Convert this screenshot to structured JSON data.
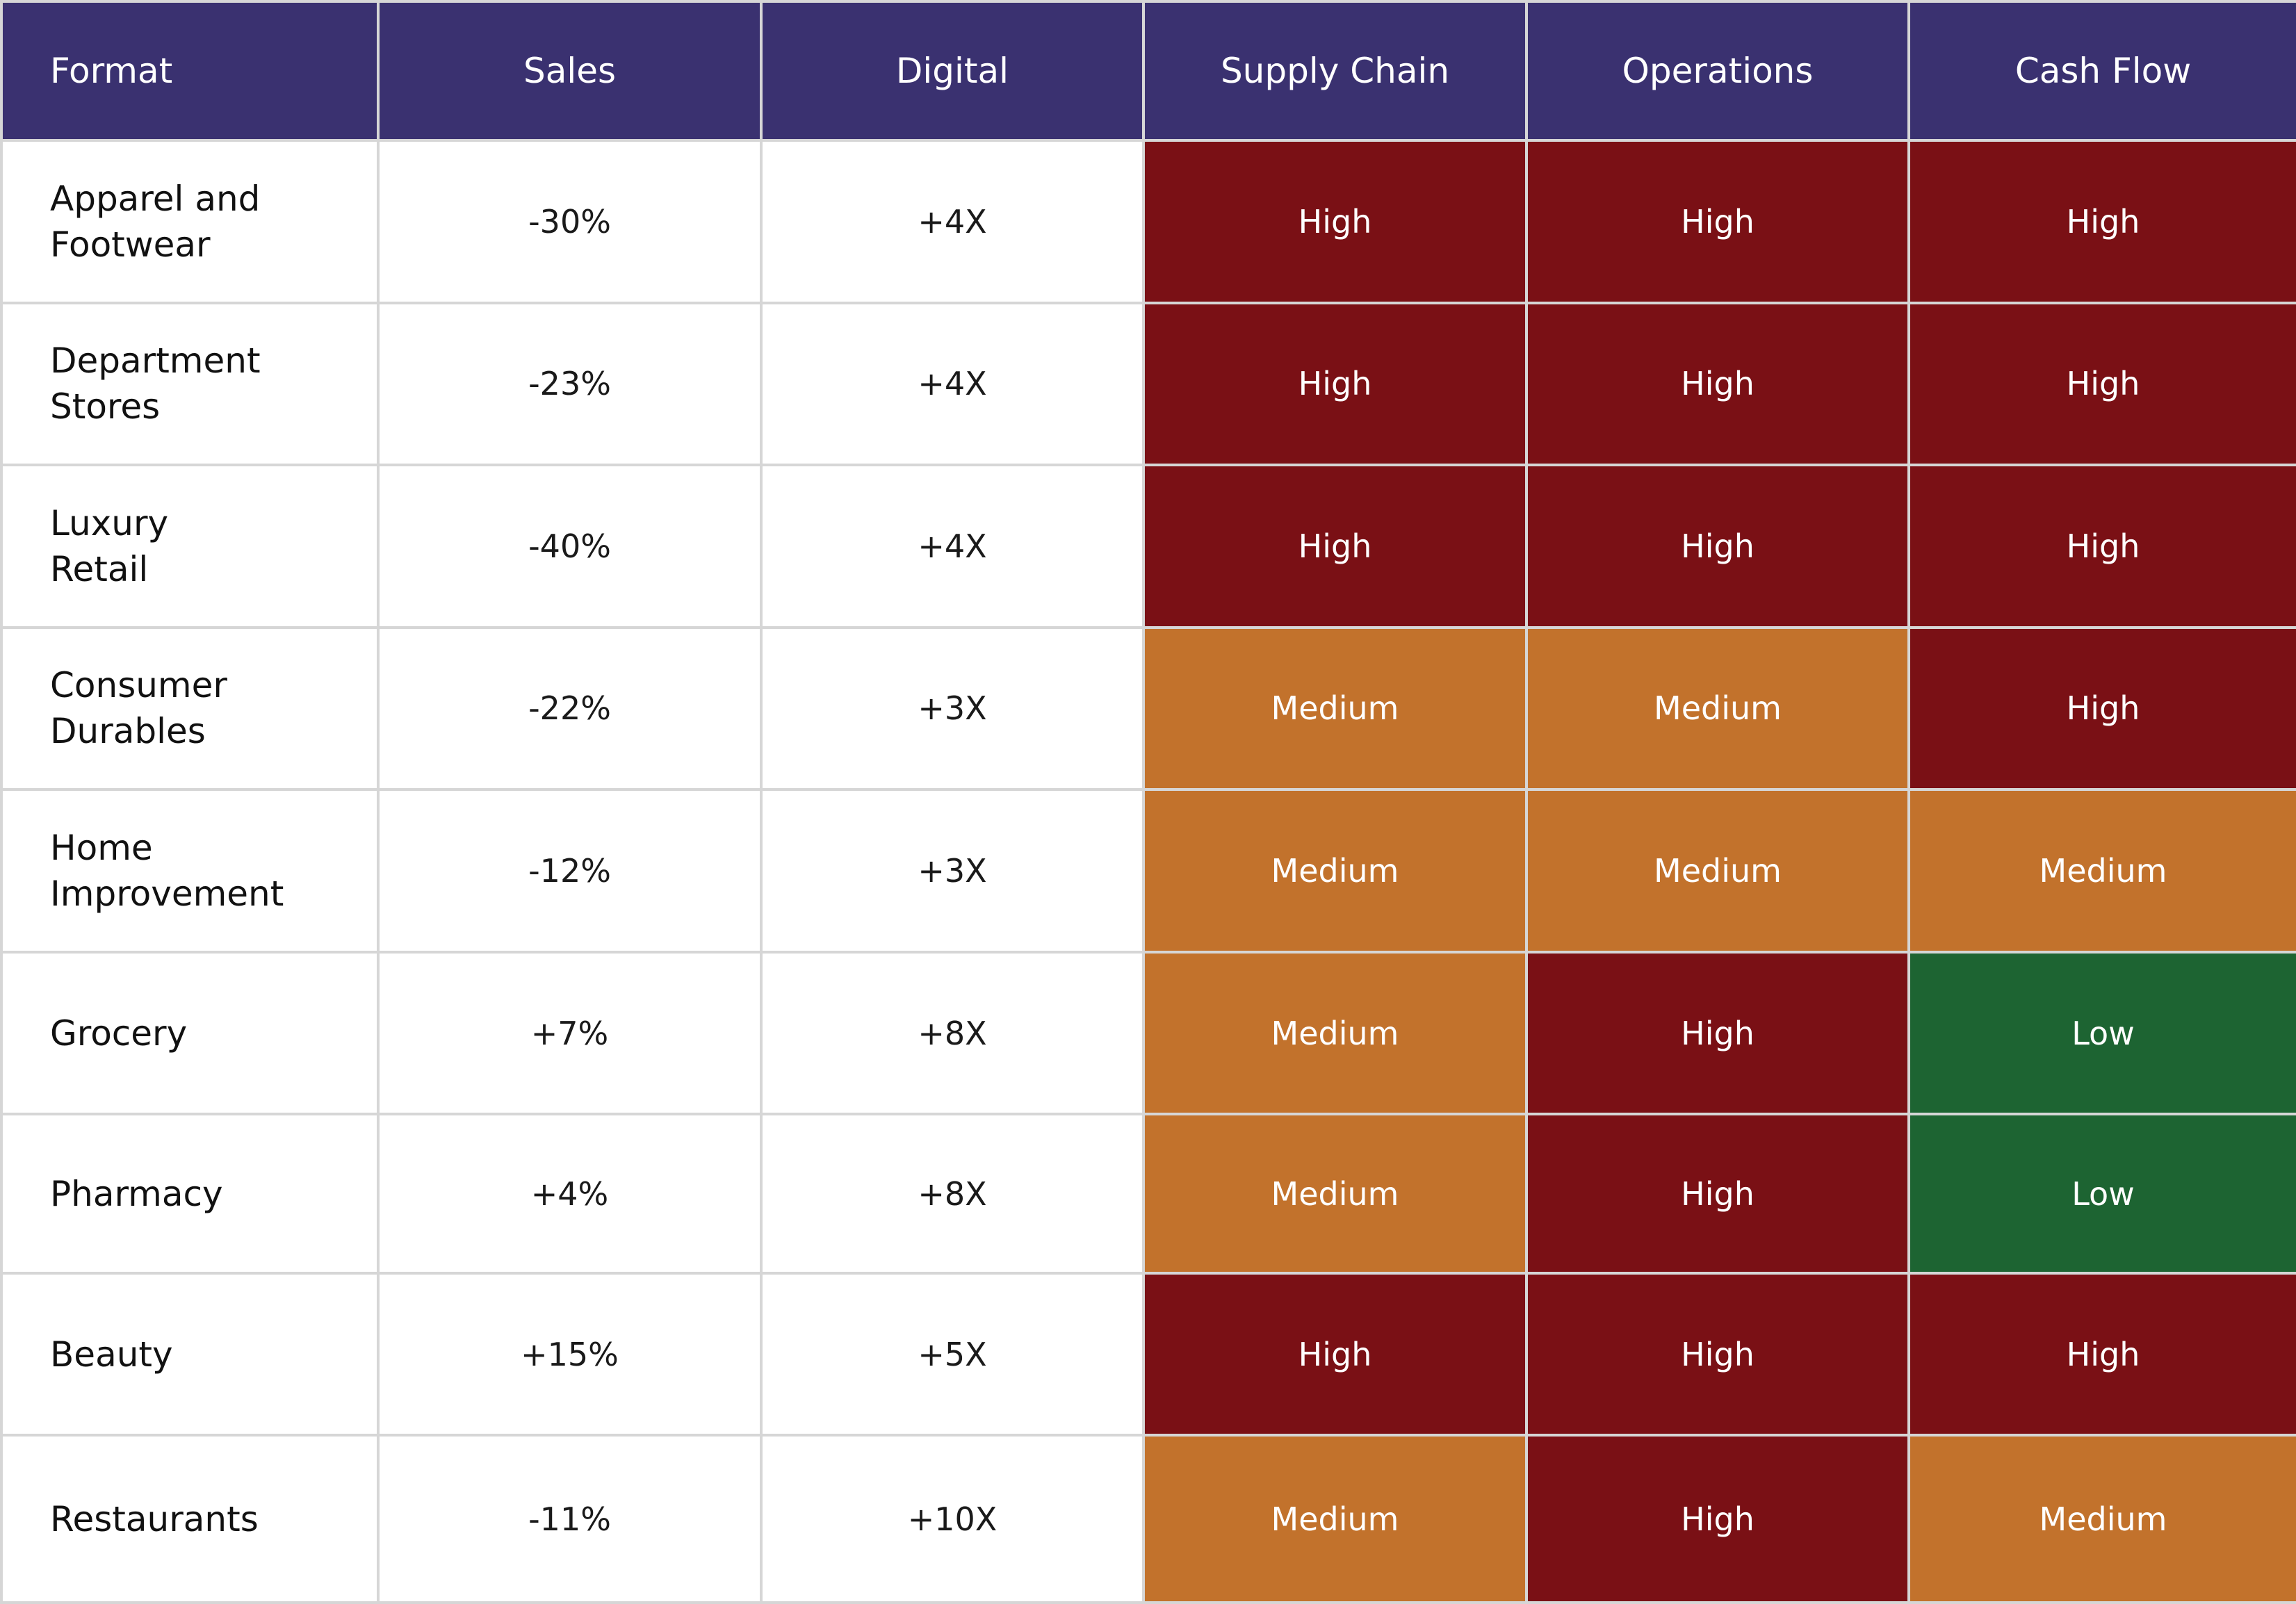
{
  "headers": [
    "Format",
    "Sales",
    "Digital",
    "Supply Chain",
    "Operations",
    "Cash Flow"
  ],
  "colors": {
    "header_bg": "#3a3170",
    "High": "#7a1015",
    "Medium": "#c2722c",
    "Low": "#1d6432"
  },
  "rows": [
    {
      "format": "Apparel and\nFootwear",
      "sales": "-30%",
      "digital": "+4X",
      "supply_chain": "High",
      "operations": "High",
      "cash_flow": "High"
    },
    {
      "format": "Department\nStores",
      "sales": "-23%",
      "digital": "+4X",
      "supply_chain": "High",
      "operations": "High",
      "cash_flow": "High"
    },
    {
      "format": "Luxury\nRetail",
      "sales": "-40%",
      "digital": "+4X",
      "supply_chain": "High",
      "operations": "High",
      "cash_flow": "High"
    },
    {
      "format": "Consumer\nDurables",
      "sales": "-22%",
      "digital": "+3X",
      "supply_chain": "Medium",
      "operations": "Medium",
      "cash_flow": "High"
    },
    {
      "format": "Home\nImprovement",
      "sales": "-12%",
      "digital": "+3X",
      "supply_chain": "Medium",
      "operations": "Medium",
      "cash_flow": "Medium"
    },
    {
      "format": "Grocery",
      "sales": "+7%",
      "digital": "+8X",
      "supply_chain": "Medium",
      "operations": "High",
      "cash_flow": "Low"
    },
    {
      "format": "Pharmacy",
      "sales": "+4%",
      "digital": "+8X",
      "supply_chain": "Medium",
      "operations": "High",
      "cash_flow": "Low"
    },
    {
      "format": "Beauty",
      "sales": "+15%",
      "digital": "+5X",
      "supply_chain": "High",
      "operations": "High",
      "cash_flow": "High"
    },
    {
      "format": "Restaurants",
      "sales": "-11%",
      "digital": "+10X",
      "supply_chain": "Medium",
      "operations": "High",
      "cash_flow": "Medium"
    }
  ]
}
